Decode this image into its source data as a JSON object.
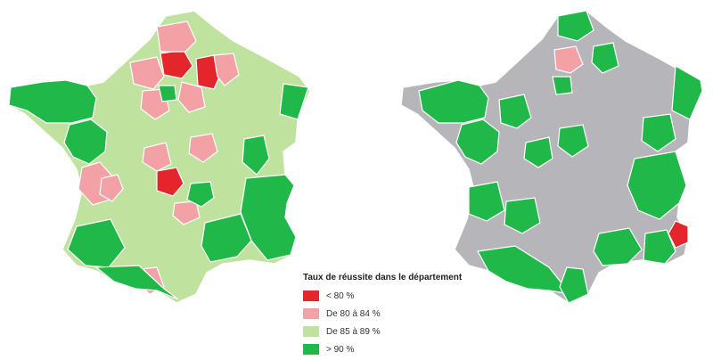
{
  "colors": {
    "below_80": "#e3262c",
    "from_80_to_84": "#f2a1a5",
    "from_85_to_89": "#bfe29e",
    "above_90": "#21b84a",
    "neutral": "#b6b6ba",
    "border": "#ffffff"
  },
  "legend": {
    "title": "Taux de réussite dans le département",
    "items": [
      {
        "label": "< 80 %",
        "category": "below_80"
      },
      {
        "label": "De 80 à 84 %",
        "category": "from_80_to_84"
      },
      {
        "label": "De 85 à 89 %",
        "category": "from_85_to_89"
      },
      {
        "label": "> 90 %",
        "category": "above_90"
      }
    ]
  },
  "maps": [
    {
      "id": "left",
      "default_category": "from_85_to_89",
      "highlights": [
        {
          "region": "north-a",
          "category": "below_80"
        },
        {
          "region": "north-b",
          "category": "below_80"
        },
        {
          "region": "center-a",
          "category": "below_80"
        },
        {
          "region": "north-c",
          "category": "from_80_to_84"
        },
        {
          "region": "north-d",
          "category": "from_80_to_84"
        },
        {
          "region": "north-e",
          "category": "from_80_to_84"
        },
        {
          "region": "north-f",
          "category": "from_80_to_84"
        },
        {
          "region": "north-g",
          "category": "from_80_to_84"
        },
        {
          "region": "center-b",
          "category": "from_80_to_84"
        },
        {
          "region": "center-c",
          "category": "from_80_to_84"
        },
        {
          "region": "center-d",
          "category": "from_80_to_84"
        },
        {
          "region": "center-e",
          "category": "from_80_to_84"
        },
        {
          "region": "west-a",
          "category": "from_80_to_84"
        },
        {
          "region": "southwest-a",
          "category": "from_80_to_84"
        },
        {
          "region": "brittany",
          "category": "above_90"
        },
        {
          "region": "west-b",
          "category": "above_90"
        },
        {
          "region": "east-a",
          "category": "above_90"
        },
        {
          "region": "east-b",
          "category": "above_90"
        },
        {
          "region": "alps",
          "category": "above_90"
        },
        {
          "region": "south-a",
          "category": "above_90"
        },
        {
          "region": "southwest-b",
          "category": "above_90"
        },
        {
          "region": "pyrenees",
          "category": "above_90"
        },
        {
          "region": "center-f",
          "category": "above_90"
        },
        {
          "region": "north-h",
          "category": "above_90"
        }
      ]
    },
    {
      "id": "right",
      "default_category": "neutral",
      "highlights": [
        {
          "region": "north-a",
          "category": "from_80_to_84"
        },
        {
          "region": "riviera",
          "category": "below_80"
        },
        {
          "region": "brittany",
          "category": "above_90"
        },
        {
          "region": "west-b",
          "category": "above_90"
        },
        {
          "region": "north-h",
          "category": "above_90"
        },
        {
          "region": "north-i",
          "category": "above_90"
        },
        {
          "region": "center-g",
          "category": "above_90"
        },
        {
          "region": "center-f",
          "category": "above_90"
        },
        {
          "region": "east-a",
          "category": "above_90"
        },
        {
          "region": "east-c",
          "category": "above_90"
        },
        {
          "region": "alps",
          "category": "above_90"
        },
        {
          "region": "southwest-b",
          "category": "above_90"
        },
        {
          "region": "southwest-c",
          "category": "above_90"
        },
        {
          "region": "pyrenees",
          "category": "above_90"
        },
        {
          "region": "south-a",
          "category": "above_90"
        },
        {
          "region": "south-b",
          "category": "above_90"
        },
        {
          "region": "center-h",
          "category": "above_90"
        },
        {
          "region": "west-c",
          "category": "above_90"
        },
        {
          "region": "corsica",
          "category": "above_90"
        }
      ]
    }
  ]
}
